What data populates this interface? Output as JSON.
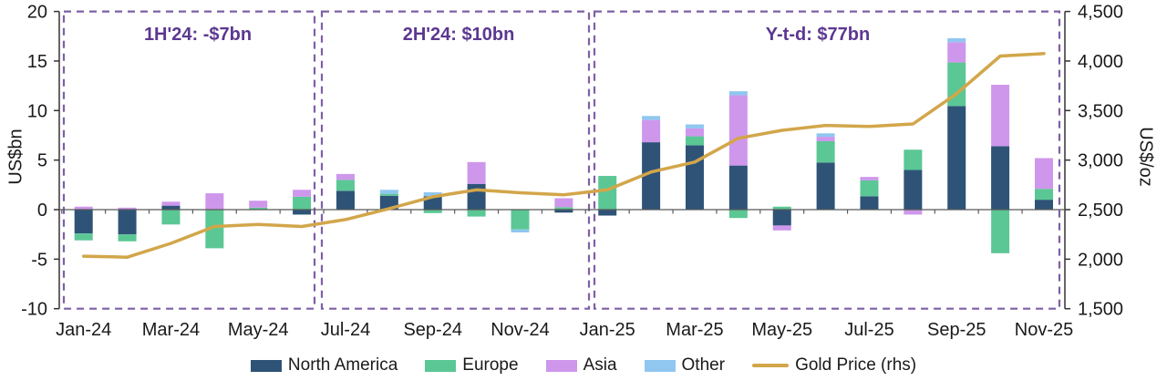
{
  "chart_data": {
    "type": "bar",
    "subtype": "stacked-bars-with-line-overlay",
    "categories": [
      "Jan-24",
      "Feb-24",
      "Mar-24",
      "Apr-24",
      "May-24",
      "Jun-24",
      "Jul-24",
      "Aug-24",
      "Sep-24",
      "Oct-24",
      "Nov-24",
      "Dec-24",
      "Jan-25",
      "Feb-25",
      "Mar-25",
      "Apr-25",
      "May-25",
      "Jun-25",
      "Jul-25",
      "Aug-25",
      "Sep-25",
      "Oct-25",
      "Nov-25"
    ],
    "x_tick_labels": [
      "Jan-24",
      "Mar-24",
      "May-24",
      "Jul-24",
      "Sep-24",
      "Nov-24",
      "Jan-25",
      "Mar-25",
      "May-25",
      "Jul-25",
      "Sep-25",
      "Nov-25"
    ],
    "bar_series": [
      {
        "name": "North America",
        "color": "#2E5377",
        "values": [
          -2.4,
          -2.5,
          0.4,
          0,
          0,
          -0.5,
          1.9,
          1.4,
          1.35,
          2.6,
          0,
          -0.3,
          -0.6,
          6.8,
          6.5,
          4.45,
          -1.6,
          4.75,
          1.35,
          4.0,
          10.45,
          6.4,
          1.0
        ]
      },
      {
        "name": "Europe",
        "color": "#5BC795",
        "values": [
          -0.7,
          -0.7,
          -1.5,
          -3.9,
          0.2,
          1.3,
          1.1,
          0.2,
          -0.35,
          -0.7,
          -2.0,
          0.25,
          3.4,
          0,
          0.9,
          -0.85,
          0.3,
          2.15,
          1.6,
          2.05,
          4.4,
          -4.4,
          1.1
        ]
      },
      {
        "name": "Asia",
        "color": "#CE97EC",
        "values": [
          0.3,
          0.2,
          0.4,
          1.65,
          0.7,
          0.7,
          0.6,
          0,
          0,
          2.2,
          0,
          0.9,
          0,
          2.25,
          0.8,
          7.1,
          -0.5,
          0.45,
          0.35,
          -0.5,
          2.05,
          6.2,
          3.1
        ]
      },
      {
        "name": "Other",
        "color": "#8FC7F0",
        "values": [
          0,
          0,
          0,
          0,
          0,
          0,
          0,
          0.4,
          0.4,
          0,
          -0.3,
          0,
          0,
          0.4,
          0.4,
          0.4,
          0,
          0.35,
          0,
          0,
          0.4,
          0,
          0
        ]
      }
    ],
    "line_series": {
      "name": "Gold Price (rhs)",
      "color": "#D2A64A",
      "axis": "right",
      "values": [
        2030,
        2020,
        2160,
        2330,
        2350,
        2330,
        2400,
        2510,
        2630,
        2700,
        2670,
        2650,
        2700,
        2880,
        2980,
        3220,
        3300,
        3350,
        3340,
        3365,
        3670,
        4050,
        4075
      ]
    },
    "left_axis": {
      "label": "US$bn",
      "min": -10,
      "max": 20,
      "ticks": [
        20,
        15,
        10,
        5,
        0,
        -5,
        -10
      ]
    },
    "right_axis": {
      "label": "US$/oz",
      "min": 1500,
      "max": 4500,
      "ticks": [
        "4,500",
        "4,000",
        "3,500",
        "3,000",
        "2,500",
        "2,000",
        "1,500"
      ]
    },
    "annotations": [
      {
        "label": "1H'24: -$7bn",
        "from": "Jan-24",
        "to": "Jun-24"
      },
      {
        "label": "2H'24: $10bn",
        "from": "Jul-24",
        "to": "Dec-24"
      },
      {
        "label": "Y-t-d: $77bn",
        "from": "Jan-25",
        "to": "Nov-25"
      }
    ],
    "legend": [
      "North America",
      "Europe",
      "Asia",
      "Other",
      "Gold Price (rhs)"
    ],
    "legend_position": "bottom",
    "grid": false
  },
  "colors": {
    "annotation_text": "#5C3790",
    "annotation_box": "#7E5FA6",
    "axis_line": "#333333",
    "zero_line": "#595959",
    "tick_text": "#1a1a1a"
  }
}
